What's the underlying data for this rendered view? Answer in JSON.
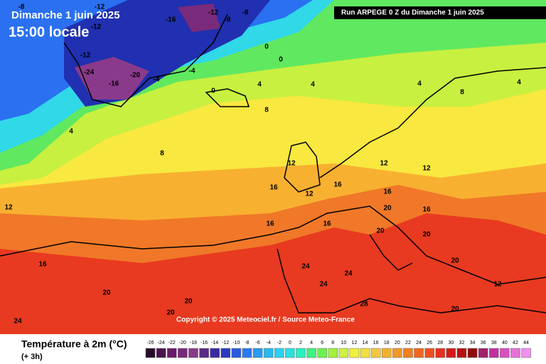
{
  "header": {
    "date": "Dimanche 1 juin 2025",
    "time": "15:00 locale",
    "run": "Run ARPEGE 0 Z du Dimanche 1 juin 2025"
  },
  "map": {
    "credit": "Copyright © 2025 Meteociel.fr / Source Meteo-France",
    "contour_labels": [
      -8,
      -12,
      -12,
      -16,
      -12,
      -8,
      -8,
      -24,
      -16,
      -20,
      -12,
      -4,
      -4,
      0,
      0,
      0,
      4,
      4,
      4,
      4,
      8,
      8,
      8,
      4,
      12,
      12,
      12,
      12,
      16,
      16,
      16,
      16,
      16,
      16,
      20,
      20,
      20,
      20,
      24,
      24,
      24,
      28,
      20,
      16,
      20,
      12,
      12,
      20,
      24,
      20
    ]
  },
  "legend": {
    "title": "Température à 2m (°C)",
    "subtitle": "(+ 3h)",
    "ticks": [
      -26,
      -24,
      -22,
      -20,
      -18,
      -16,
      -14,
      -12,
      -10,
      -8,
      -6,
      -4,
      -2,
      0,
      2,
      4,
      6,
      8,
      10,
      12,
      14,
      16,
      18,
      20,
      22,
      24,
      26,
      28,
      30,
      32,
      34,
      36,
      38,
      40,
      42,
      44
    ],
    "colors": [
      "#2a0a2a",
      "#4a124a",
      "#6a1a6a",
      "#7a2a7a",
      "#8a3a8a",
      "#5a2a8a",
      "#3a2aa0",
      "#2a3ac0",
      "#2a5ae0",
      "#2a7af0",
      "#2a9af0",
      "#2ab8f0",
      "#2ad0f0",
      "#2ae0e0",
      "#2af0c0",
      "#40f080",
      "#70f050",
      "#a0f040",
      "#d0f040",
      "#f0f040",
      "#f0e040",
      "#f0c840",
      "#f0b030",
      "#f09828",
      "#f08020",
      "#f06820",
      "#f05020",
      "#e83020",
      "#d81818",
      "#b81010",
      "#900808",
      "#a0206a",
      "#c030a0",
      "#d850c0",
      "#e870d8",
      "#f090f0"
    ]
  }
}
